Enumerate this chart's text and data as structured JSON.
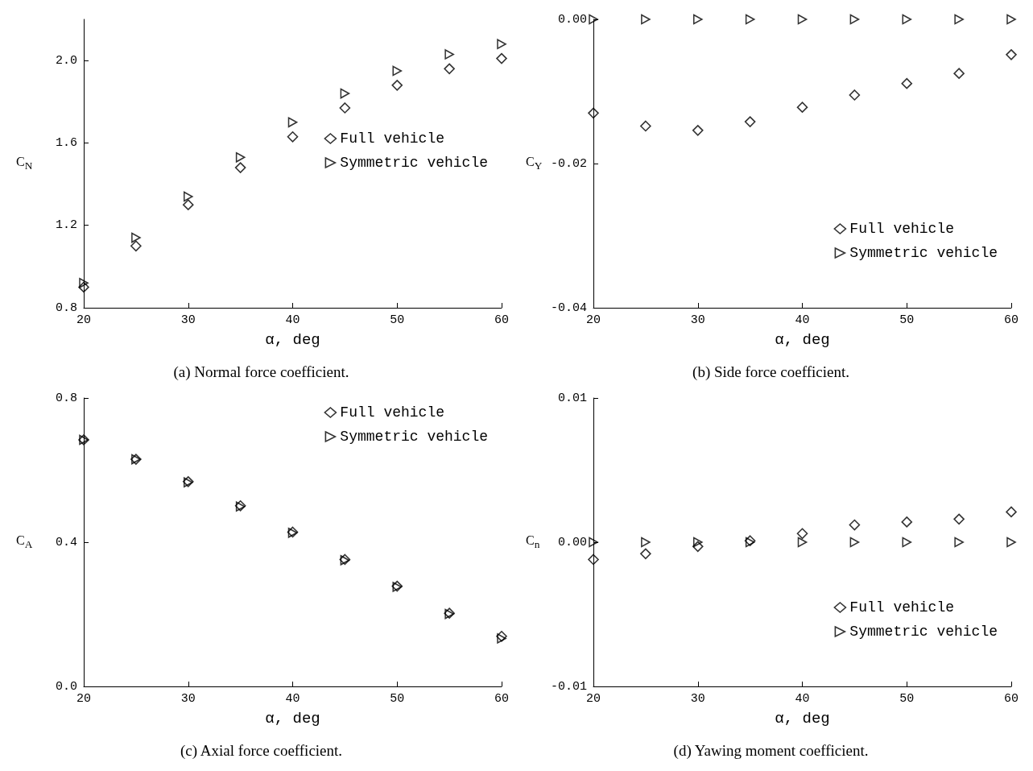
{
  "chart_data": [
    {
      "type": "scatter",
      "title": "(a) Normal force coefficient.",
      "xlabel": "α, deg",
      "ylabel": "C$_{N}$",
      "x": [
        20,
        25,
        30,
        35,
        40,
        45,
        50,
        55,
        60
      ],
      "xlim": [
        20,
        60
      ],
      "xticks": [
        20,
        30,
        40,
        50,
        60
      ],
      "ylim": [
        0.8,
        2.2
      ],
      "yticks": [
        {
          "value": 0.8,
          "label": "0.8"
        },
        {
          "value": 1.2,
          "label": "1.2"
        },
        {
          "value": 1.6,
          "label": "1.6"
        },
        {
          "value": 2.0,
          "label": "2.0"
        }
      ],
      "grid": false,
      "legend": "right",
      "series": [
        {
          "name": "Full vehicle",
          "color": "#000000",
          "marker": "diamond",
          "values": [
            0.9,
            1.1,
            1.3,
            1.48,
            1.63,
            1.77,
            1.88,
            1.96,
            2.01
          ]
        },
        {
          "name": "Symmetric vehicle",
          "color": "#000000",
          "marker": "triangle",
          "values": [
            0.92,
            1.14,
            1.34,
            1.53,
            1.7,
            1.84,
            1.95,
            2.03,
            2.08
          ]
        }
      ]
    },
    {
      "type": "scatter",
      "title": "(b) Side force coefficient.",
      "xlabel": "α, deg",
      "ylabel": "C$_{Y}$",
      "x": [
        20,
        25,
        30,
        35,
        40,
        45,
        50,
        55,
        60
      ],
      "xlim": [
        20,
        60
      ],
      "xticks": [
        20,
        30,
        40,
        50,
        60
      ],
      "ylim": [
        -0.04,
        0
      ],
      "yticks": [
        {
          "value": -0.04,
          "label": "-0.04"
        },
        {
          "value": -0.02,
          "label": "-0.02"
        },
        {
          "value": 0,
          "label": "0.00"
        }
      ],
      "grid": false,
      "legend": "bottom right",
      "series": [
        {
          "name": "Full vehicle",
          "color": "#000000",
          "marker": "diamond",
          "values": [
            -0.013,
            -0.0148,
            -0.0154,
            -0.0142,
            -0.0122,
            -0.0105,
            -0.0089,
            -0.0075,
            -0.0049
          ]
        },
        {
          "name": "Symmetric vehicle",
          "color": "#000000",
          "marker": "triangle",
          "values": [
            0,
            0,
            0,
            0,
            0,
            0,
            0,
            0,
            0
          ]
        }
      ]
    },
    {
      "type": "scatter",
      "title": "(c) Axial force coefficient.",
      "xlabel": "α, deg",
      "ylabel": "C$_{A}$",
      "x": [
        20,
        25,
        30,
        35,
        40,
        45,
        50,
        55,
        60
      ],
      "xlim": [
        20,
        60
      ],
      "xticks": [
        20,
        30,
        40,
        50,
        60
      ],
      "ylim": [
        0,
        0.8
      ],
      "yticks": [
        {
          "value": 0,
          "label": "0.0"
        },
        {
          "value": 0.4,
          "label": "0.4"
        },
        {
          "value": 0.8,
          "label": "0.8"
        }
      ],
      "grid": false,
      "legend": "top right",
      "series": [
        {
          "name": "Full vehicle",
          "color": "#000000",
          "marker": "diamond",
          "values": [
            0.684,
            0.63,
            0.568,
            0.501,
            0.428,
            0.352,
            0.278,
            0.203,
            0.139
          ]
        },
        {
          "name": "Symmetric vehicle",
          "color": "#000000",
          "marker": "triangle",
          "values": [
            0.684,
            0.63,
            0.566,
            0.499,
            0.426,
            0.35,
            0.276,
            0.201,
            0.133
          ]
        }
      ]
    },
    {
      "type": "scatter",
      "title": "(d) Yawing moment coefficient.",
      "xlabel": "α, deg",
      "ylabel": "C$_{n}$",
      "x": [
        20,
        25,
        30,
        35,
        40,
        45,
        50,
        55,
        60
      ],
      "xlim": [
        20,
        60
      ],
      "xticks": [
        20,
        30,
        40,
        50,
        60
      ],
      "ylim": [
        -0.01,
        0.01
      ],
      "yticks": [
        {
          "value": -0.01,
          "label": "-0.01"
        },
        {
          "value": 0,
          "label": "0.00"
        },
        {
          "value": 0.01,
          "label": "0.01"
        }
      ],
      "grid": false,
      "legend": "bottom right",
      "series": [
        {
          "name": "Full vehicle",
          "color": "#000000",
          "marker": "diamond",
          "values": [
            -0.0012,
            -0.0008,
            -0.0003,
            0.0001,
            0.0006,
            0.0012,
            0.0014,
            0.0016,
            0.0021
          ]
        },
        {
          "name": "Symmetric vehicle",
          "color": "#000000",
          "marker": "triangle",
          "values": [
            0,
            0,
            0,
            0,
            0,
            0,
            0,
            0,
            0
          ]
        }
      ]
    }
  ]
}
